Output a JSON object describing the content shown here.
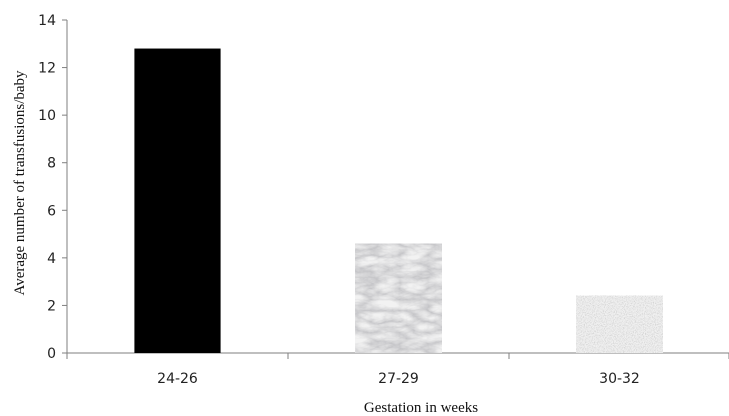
{
  "chart_data": {
    "type": "bar",
    "title": "",
    "xlabel": "Gestation in weeks",
    "ylabel": "Average number of transfusions/baby",
    "categories": [
      "24-26",
      "27-29",
      "30-32"
    ],
    "values": [
      12.8,
      4.6,
      2.4
    ],
    "ylim": [
      0,
      14
    ],
    "yticks": [
      0,
      2,
      4,
      6,
      8,
      10,
      12,
      14
    ],
    "grid": false,
    "legend": "none",
    "bar_fills": [
      "solid-black",
      "marble-texture",
      "granite-texture"
    ],
    "colors": {
      "bar1": "#000000",
      "bar2": "#d9d9d9",
      "bar3": "#e6e6e6",
      "axis": "#7f7f7f"
    }
  }
}
